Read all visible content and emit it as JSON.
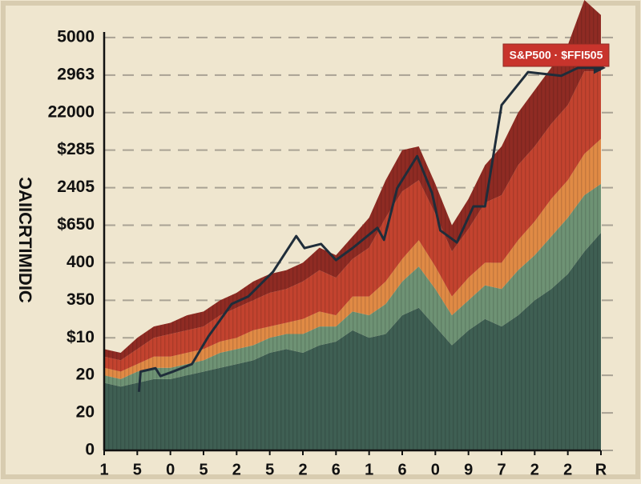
{
  "chart_data": {
    "type": "area",
    "stacked": true,
    "y_label": "ƆAIICRTIMIDIC",
    "annotation": "S&P500 · $FFI505",
    "x": [
      0,
      1,
      2,
      3,
      4,
      5,
      6,
      7,
      8,
      9,
      10,
      11,
      12,
      13,
      14,
      15,
      16,
      17,
      18,
      19,
      20,
      21,
      22,
      23,
      24,
      25,
      26,
      27,
      28,
      29,
      30
    ],
    "xlim": [
      0,
      30
    ],
    "xticks": [
      {
        "value": 0,
        "label": "1"
      },
      {
        "value": 2,
        "label": "5"
      },
      {
        "value": 4,
        "label": "0"
      },
      {
        "value": 6,
        "label": "5"
      },
      {
        "value": 8,
        "label": "2"
      },
      {
        "value": 10,
        "label": "5"
      },
      {
        "value": 12,
        "label": "2"
      },
      {
        "value": 14,
        "label": "6"
      },
      {
        "value": 16,
        "label": "1"
      },
      {
        "value": 18,
        "label": "6"
      },
      {
        "value": 20,
        "label": "0"
      },
      {
        "value": 22,
        "label": "9"
      },
      {
        "value": 24,
        "label": "7"
      },
      {
        "value": 26,
        "label": "2"
      },
      {
        "value": 28,
        "label": "2"
      },
      {
        "value": 30,
        "label": "R"
      }
    ],
    "ylim": [
      0,
      12
    ],
    "yticks": [
      0,
      {
        "value": 1,
        "label": "20"
      },
      {
        "value": 2,
        "label": "20"
      },
      {
        "value": 3,
        "label": "$10"
      },
      {
        "value": 4,
        "label": "350"
      },
      {
        "value": 5,
        "label": "400"
      },
      {
        "value": 6,
        "label": "$650"
      },
      {
        "value": 7,
        "label": "2405"
      },
      {
        "value": 8,
        "label": "$285"
      },
      {
        "value": 9,
        "label": "22000"
      },
      {
        "value": 10,
        "label": "2963"
      },
      {
        "value": 11,
        "label": "5000"
      }
    ],
    "grid": true,
    "series": [
      {
        "color": "#3f5f53",
        "values": [
          1.8,
          1.7,
          1.8,
          1.9,
          1.9,
          2.0,
          2.1,
          2.2,
          2.3,
          2.4,
          2.6,
          2.7,
          2.6,
          2.8,
          2.9,
          3.2,
          3.0,
          3.1,
          3.6,
          3.8,
          3.3,
          2.8,
          3.2,
          3.5,
          3.3,
          3.6,
          4.0,
          4.3,
          4.7,
          5.3,
          5.8
        ]
      },
      {
        "color": "#6e9274",
        "values": [
          0.2,
          0.2,
          0.3,
          0.3,
          0.3,
          0.3,
          0.3,
          0.4,
          0.4,
          0.4,
          0.4,
          0.4,
          0.5,
          0.5,
          0.4,
          0.5,
          0.6,
          0.8,
          0.9,
          1.1,
          1.0,
          0.8,
          0.8,
          0.9,
          1.0,
          1.2,
          1.2,
          1.4,
          1.5,
          1.5,
          1.3
        ]
      },
      {
        "color": "#e08a45",
        "values": [
          0.2,
          0.2,
          0.2,
          0.3,
          0.3,
          0.3,
          0.3,
          0.3,
          0.3,
          0.4,
          0.3,
          0.3,
          0.4,
          0.4,
          0.3,
          0.4,
          0.5,
          0.6,
          0.6,
          0.7,
          0.6,
          0.5,
          0.6,
          0.6,
          0.7,
          0.8,
          0.9,
          1.0,
          1.0,
          1.1,
          1.2
        ]
      },
      {
        "color": "#c3432f",
        "values": [
          0.3,
          0.3,
          0.4,
          0.5,
          0.6,
          0.6,
          0.6,
          0.7,
          0.8,
          0.8,
          0.9,
          0.9,
          1.0,
          1.1,
          1.0,
          1.0,
          1.3,
          1.7,
          1.8,
          1.6,
          1.4,
          1.2,
          1.3,
          1.6,
          1.8,
          2.0,
          2.0,
          2.0,
          2.0,
          2.2,
          1.8
        ]
      },
      {
        "color": "#8f2b23",
        "values": [
          0.2,
          0.2,
          0.3,
          0.3,
          0.3,
          0.4,
          0.4,
          0.4,
          0.4,
          0.5,
          0.5,
          0.5,
          0.5,
          0.6,
          0.6,
          0.6,
          0.8,
          1.0,
          1.1,
          0.9,
          0.8,
          0.7,
          0.8,
          1.0,
          1.3,
          1.4,
          1.5,
          1.5,
          1.6,
          1.9,
          1.5
        ]
      }
    ],
    "line": {
      "color": "#1f2d3a",
      "x": [
        2.1,
        2.2,
        3.1,
        3.4,
        4.1,
        5.3,
        6.3,
        7.7,
        8.7,
        10.2,
        11.6,
        12.1,
        13.1,
        14.0,
        15.0,
        16.5,
        16.9,
        17.7,
        18.9,
        19.8,
        20.3,
        21.3,
        22.3,
        23.0,
        24.0,
        25.6,
        27.6,
        28.6,
        30.0
      ],
      "values": [
        1.56,
        2.1,
        2.19,
        1.98,
        2.09,
        2.3,
        3.04,
        3.9,
        4.1,
        4.76,
        5.71,
        5.39,
        5.5,
        5.07,
        5.39,
        5.93,
        5.61,
        6.99,
        7.84,
        6.86,
        5.86,
        5.54,
        6.5,
        6.5,
        9.2,
        10.08,
        9.98,
        10.19,
        10.19
      ]
    }
  }
}
